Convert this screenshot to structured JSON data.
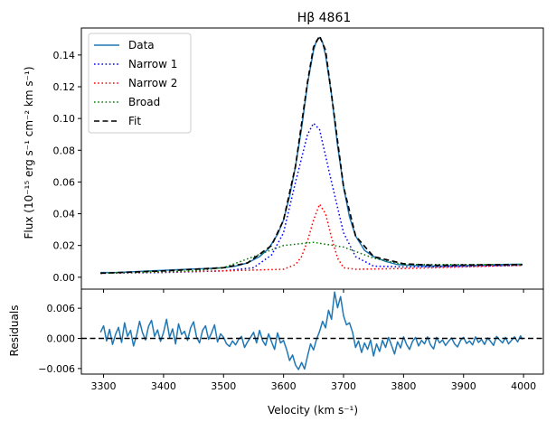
{
  "chart_data": [
    {
      "type": "line",
      "panel": "main",
      "title": "Hβ 4861",
      "xlabel": "",
      "ylabel": "Flux (10⁻¹⁵ erg s⁻¹ cm⁻² km s⁻¹)",
      "xlim": [
        3263,
        4033
      ],
      "ylim": [
        -0.0075,
        0.157
      ],
      "xticks": [
        3300,
        3400,
        3500,
        3600,
        3700,
        3800,
        3900,
        4000
      ],
      "yticks": [
        0.0,
        0.02,
        0.04,
        0.06,
        0.08,
        0.1,
        0.12,
        0.14
      ],
      "ytick_labels": [
        "0.00",
        "0.02",
        "0.04",
        "0.06",
        "0.08",
        "0.10",
        "0.12",
        "0.14"
      ],
      "grid": false,
      "legend_position": "top-left",
      "series": [
        {
          "name": "Data",
          "color": "#1f77b4",
          "style": "solid",
          "x": [
            3295,
            3320,
            3350,
            3380,
            3410,
            3440,
            3470,
            3500,
            3520,
            3540,
            3560,
            3575,
            3590,
            3600,
            3610,
            3620,
            3630,
            3640,
            3650,
            3655,
            3660,
            3665,
            3670,
            3680,
            3690,
            3700,
            3710,
            3720,
            3735,
            3750,
            3770,
            3790,
            3810,
            3840,
            3880,
            3920,
            3960,
            3998
          ],
          "y": [
            0.003,
            0.003,
            0.0035,
            0.004,
            0.0045,
            0.005,
            0.0055,
            0.006,
            0.007,
            0.009,
            0.013,
            0.018,
            0.027,
            0.036,
            0.051,
            0.07,
            0.094,
            0.122,
            0.143,
            0.149,
            0.151,
            0.148,
            0.14,
            0.115,
            0.083,
            0.057,
            0.038,
            0.026,
            0.017,
            0.013,
            0.01,
            0.008,
            0.0075,
            0.007,
            0.0072,
            0.0075,
            0.008,
            0.0082
          ]
        },
        {
          "name": "Narrow 1",
          "color": "#0000ff",
          "style": "dotted",
          "x": [
            3295,
            3400,
            3500,
            3550,
            3580,
            3600,
            3620,
            3640,
            3650,
            3660,
            3680,
            3700,
            3720,
            3750,
            3800,
            3850,
            3998
          ],
          "y": [
            0.0025,
            0.003,
            0.004,
            0.006,
            0.014,
            0.028,
            0.06,
            0.09,
            0.097,
            0.093,
            0.06,
            0.028,
            0.013,
            0.007,
            0.0065,
            0.0065,
            0.0075
          ]
        },
        {
          "name": "Narrow 2",
          "color": "#ff0000",
          "style": "dotted",
          "x": [
            3295,
            3500,
            3600,
            3620,
            3630,
            3640,
            3650,
            3660,
            3670,
            3680,
            3690,
            3700,
            3720,
            3800,
            3998
          ],
          "y": [
            0.0025,
            0.004,
            0.005,
            0.008,
            0.013,
            0.023,
            0.036,
            0.046,
            0.04,
            0.025,
            0.012,
            0.006,
            0.005,
            0.0055,
            0.0075
          ]
        },
        {
          "name": "Broad",
          "color": "#008000",
          "style": "dotted",
          "x": [
            3295,
            3450,
            3500,
            3550,
            3600,
            3650,
            3700,
            3750,
            3800,
            3998
          ],
          "y": [
            0.0025,
            0.004,
            0.006,
            0.013,
            0.02,
            0.022,
            0.019,
            0.012,
            0.008,
            0.008
          ]
        },
        {
          "name": "Fit",
          "color": "#000000",
          "style": "dashed",
          "x": [
            3295,
            3400,
            3500,
            3540,
            3580,
            3600,
            3620,
            3640,
            3650,
            3660,
            3670,
            3680,
            3700,
            3720,
            3750,
            3800,
            3850,
            3998
          ],
          "y": [
            0.0025,
            0.004,
            0.006,
            0.009,
            0.02,
            0.036,
            0.07,
            0.123,
            0.145,
            0.152,
            0.143,
            0.115,
            0.057,
            0.026,
            0.013,
            0.0085,
            0.0075,
            0.008
          ]
        }
      ]
    },
    {
      "type": "line",
      "panel": "residuals",
      "xlabel": "Velocity (km s⁻¹)",
      "ylabel": "Residuals",
      "xlim": [
        3263,
        4033
      ],
      "ylim": [
        -0.0071,
        0.0098
      ],
      "xticks": [
        3300,
        3400,
        3500,
        3600,
        3700,
        3800,
        3900,
        4000
      ],
      "yticks": [
        -0.006,
        0.0,
        0.006
      ],
      "ytick_labels": [
        "−0.006",
        "0.000",
        "0.006"
      ],
      "grid": false,
      "series": [
        {
          "name": "Residuals",
          "color": "#1f77b4",
          "style": "solid",
          "x": [
            3295,
            3300,
            3305,
            3310,
            3315,
            3320,
            3325,
            3330,
            3335,
            3340,
            3345,
            3350,
            3355,
            3360,
            3365,
            3370,
            3375,
            3380,
            3385,
            3390,
            3395,
            3400,
            3405,
            3410,
            3415,
            3420,
            3425,
            3430,
            3435,
            3440,
            3445,
            3450,
            3455,
            3460,
            3465,
            3470,
            3475,
            3480,
            3485,
            3490,
            3495,
            3500,
            3505,
            3510,
            3515,
            3520,
            3525,
            3530,
            3535,
            3540,
            3545,
            3550,
            3555,
            3560,
            3565,
            3570,
            3575,
            3580,
            3585,
            3590,
            3595,
            3600,
            3605,
            3610,
            3615,
            3620,
            3625,
            3630,
            3635,
            3640,
            3645,
            3650,
            3655,
            3660,
            3665,
            3670,
            3675,
            3680,
            3685,
            3690,
            3695,
            3700,
            3705,
            3710,
            3715,
            3720,
            3725,
            3730,
            3735,
            3740,
            3745,
            3750,
            3755,
            3760,
            3765,
            3770,
            3775,
            3780,
            3785,
            3790,
            3795,
            3800,
            3805,
            3810,
            3815,
            3820,
            3825,
            3830,
            3835,
            3840,
            3845,
            3850,
            3855,
            3860,
            3865,
            3870,
            3875,
            3880,
            3885,
            3890,
            3895,
            3900,
            3905,
            3910,
            3915,
            3920,
            3925,
            3930,
            3935,
            3940,
            3945,
            3950,
            3955,
            3960,
            3965,
            3970,
            3975,
            3980,
            3985,
            3990,
            3995,
            3998
          ],
          "y": [
            0.0012,
            0.0025,
            -0.0005,
            0.0018,
            -0.0012,
            0.0008,
            0.0022,
            -0.0008,
            0.0031,
            0.0004,
            0.0016,
            -0.0015,
            0.0006,
            0.0034,
            0.0011,
            -0.0003,
            0.0024,
            0.0036,
            0.0004,
            0.0017,
            -0.0006,
            0.0012,
            0.0038,
            0.0002,
            0.0019,
            -0.0011,
            0.0029,
            0.0008,
            0.0014,
            -0.0004,
            0.0021,
            0.0033,
            0.0003,
            -0.0009,
            0.0016,
            0.0025,
            -0.0002,
            0.0011,
            0.0027,
            -0.0007,
            0.0009,
            0.0002,
            -0.0011,
            -0.0016,
            -0.0005,
            -0.0013,
            -0.0002,
            0.0004,
            -0.0018,
            -0.0007,
            0.0002,
            0.0012,
            -0.0009,
            0.0016,
            -0.0004,
            -0.0014,
            0.0009,
            -0.0007,
            -0.0022,
            0.0011,
            -0.0009,
            -0.0004,
            -0.0022,
            -0.0044,
            -0.0033,
            -0.0053,
            -0.0062,
            -0.0048,
            -0.0061,
            -0.0035,
            -0.0011,
            -0.0023,
            -0.0002,
            0.0014,
            0.0034,
            0.0021,
            0.0056,
            0.0038,
            0.0092,
            0.0061,
            0.0083,
            0.0045,
            0.0027,
            0.0031,
            0.0012,
            -0.0018,
            -0.0005,
            -0.0028,
            -0.0009,
            -0.0022,
            -0.0003,
            -0.0035,
            -0.0011,
            -0.0026,
            -0.0004,
            -0.0018,
            0.0002,
            -0.0014,
            -0.0031,
            -0.0007,
            -0.0019,
            0.0003,
            -0.0012,
            -0.0022,
            -0.0006,
            0.0002,
            -0.0015,
            -0.0004,
            -0.0011,
            0.0003,
            -0.0013,
            -0.0021,
            0.0002,
            -0.0009,
            -0.0003,
            -0.0014,
            -0.0006,
            0.0001,
            -0.0011,
            -0.0017,
            -0.0004,
            0.0002,
            -0.001,
            -0.0005,
            -0.0013,
            0.0003,
            -0.0008,
            -0.0002,
            -0.0012,
            0.0001,
            -0.0006,
            -0.0014,
            0.0004,
            -0.0003,
            -0.0009,
            0.0002,
            -0.0011,
            -0.0004,
            0.0003,
            -0.0007,
            0.0005,
            -0.0002
          ]
        },
        {
          "name": "zero",
          "color": "#000000",
          "style": "dashed",
          "x": [
            3263,
            4033
          ],
          "y": [
            0,
            0
          ]
        }
      ]
    }
  ]
}
